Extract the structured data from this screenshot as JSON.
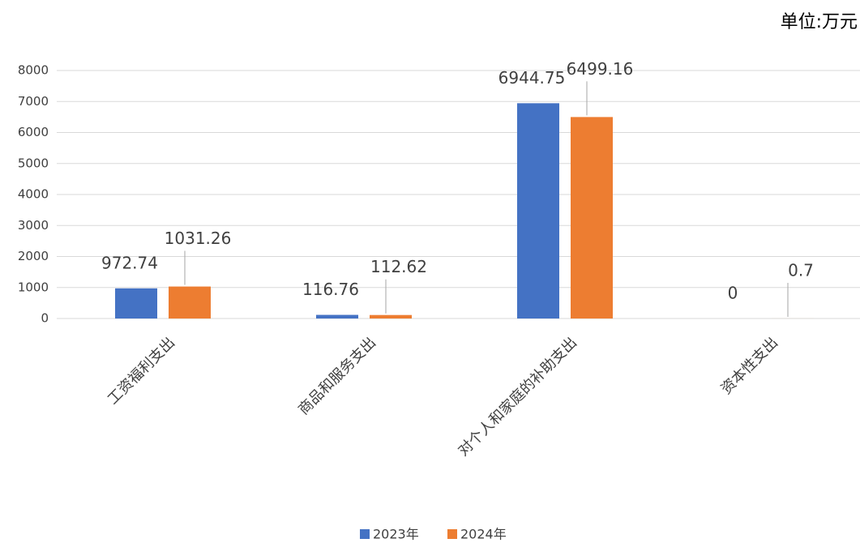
{
  "chart_data": {
    "type": "bar",
    "unit": "单位:万元",
    "categories": [
      "工资福利支出",
      "商品和服务支出",
      "对个人和家庭的补助支出",
      "资本性支出"
    ],
    "series": [
      {
        "name": "2023年",
        "color": "#4472c4",
        "values": [
          972.74,
          116.76,
          6944.75,
          0
        ]
      },
      {
        "name": "2024年",
        "color": "#ed7d31",
        "values": [
          1031.26,
          112.62,
          6499.16,
          0.7
        ]
      }
    ],
    "ylim": [
      0,
      8000
    ],
    "yticks": [
      0,
      1000,
      2000,
      3000,
      4000,
      5000,
      6000,
      7000,
      8000
    ],
    "grid": true
  }
}
